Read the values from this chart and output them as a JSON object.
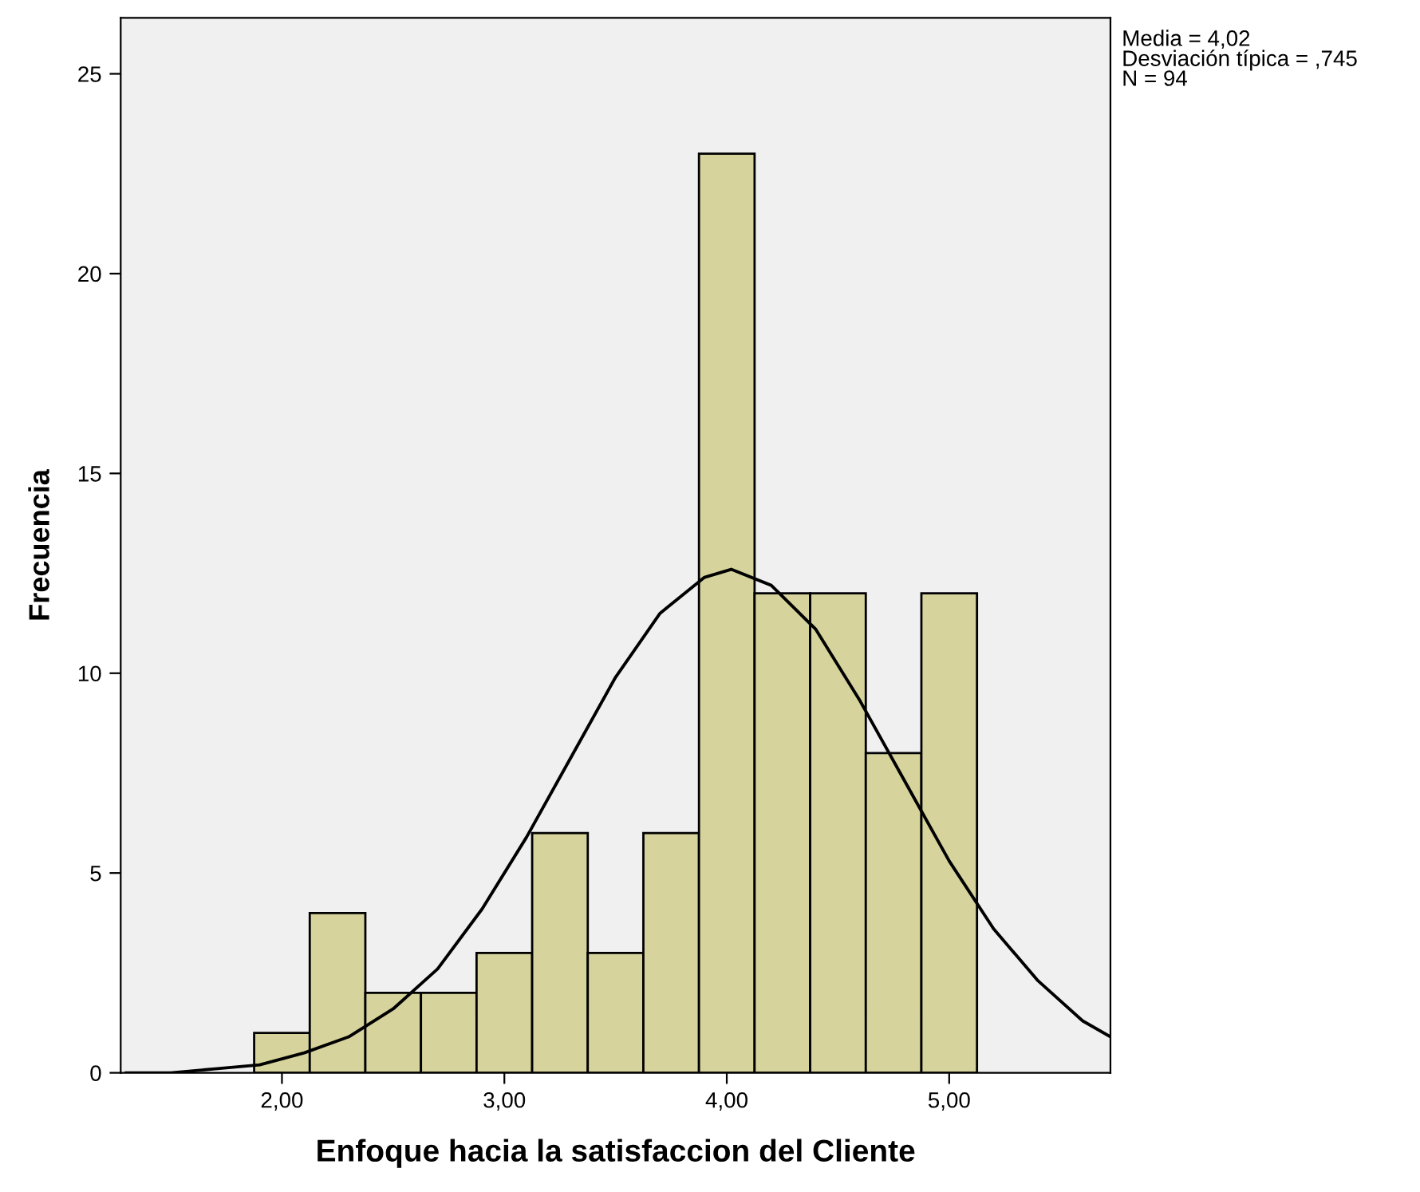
{
  "chart_data": {
    "type": "histogram",
    "xlabel": "Enfoque hacia la satisfaccion del Cliente",
    "ylabel": "Frecuencia",
    "bins": [
      1.875,
      2.125,
      2.375,
      2.625,
      2.875,
      3.125,
      3.375,
      3.625,
      3.875,
      4.125,
      4.375,
      4.625,
      4.875,
      5.125
    ],
    "values": [
      1,
      4,
      2,
      2,
      3,
      6,
      3,
      6,
      23,
      12,
      12,
      8,
      12
    ],
    "color": "#d6d39c",
    "series": [
      {
        "type": "line",
        "color": "#000000",
        "x": [
          1.3,
          1.5,
          1.7,
          1.9,
          2.1,
          2.3,
          2.5,
          2.7,
          2.9,
          3.1,
          3.3,
          3.5,
          3.7,
          3.9,
          4.02,
          4.2,
          4.4,
          4.6,
          4.8,
          5.0,
          5.2,
          5.4,
          5.6,
          5.725
        ],
        "values": [
          0.0,
          0.0,
          0.1,
          0.2,
          0.5,
          0.9,
          1.6,
          2.6,
          4.1,
          5.9,
          7.9,
          9.9,
          11.5,
          12.4,
          12.6,
          12.2,
          11.1,
          9.3,
          7.3,
          5.3,
          3.6,
          2.3,
          1.3,
          0.9
        ]
      }
    ],
    "xlim": [
      1.275,
      5.725
    ],
    "xticks": [
      {
        "value": 2,
        "label": "2,00"
      },
      {
        "value": 3,
        "label": "3,00"
      },
      {
        "value": 4,
        "label": "4,00"
      },
      {
        "value": 5,
        "label": "5,00"
      }
    ],
    "ylim": [
      0,
      26.4
    ],
    "yticks": [
      0,
      5,
      10,
      15,
      20,
      25
    ],
    "annotations": [
      "Media = 4,02\nDesviación típica = ,745\nN = 94"
    ],
    "grid": false,
    "legend": false
  }
}
